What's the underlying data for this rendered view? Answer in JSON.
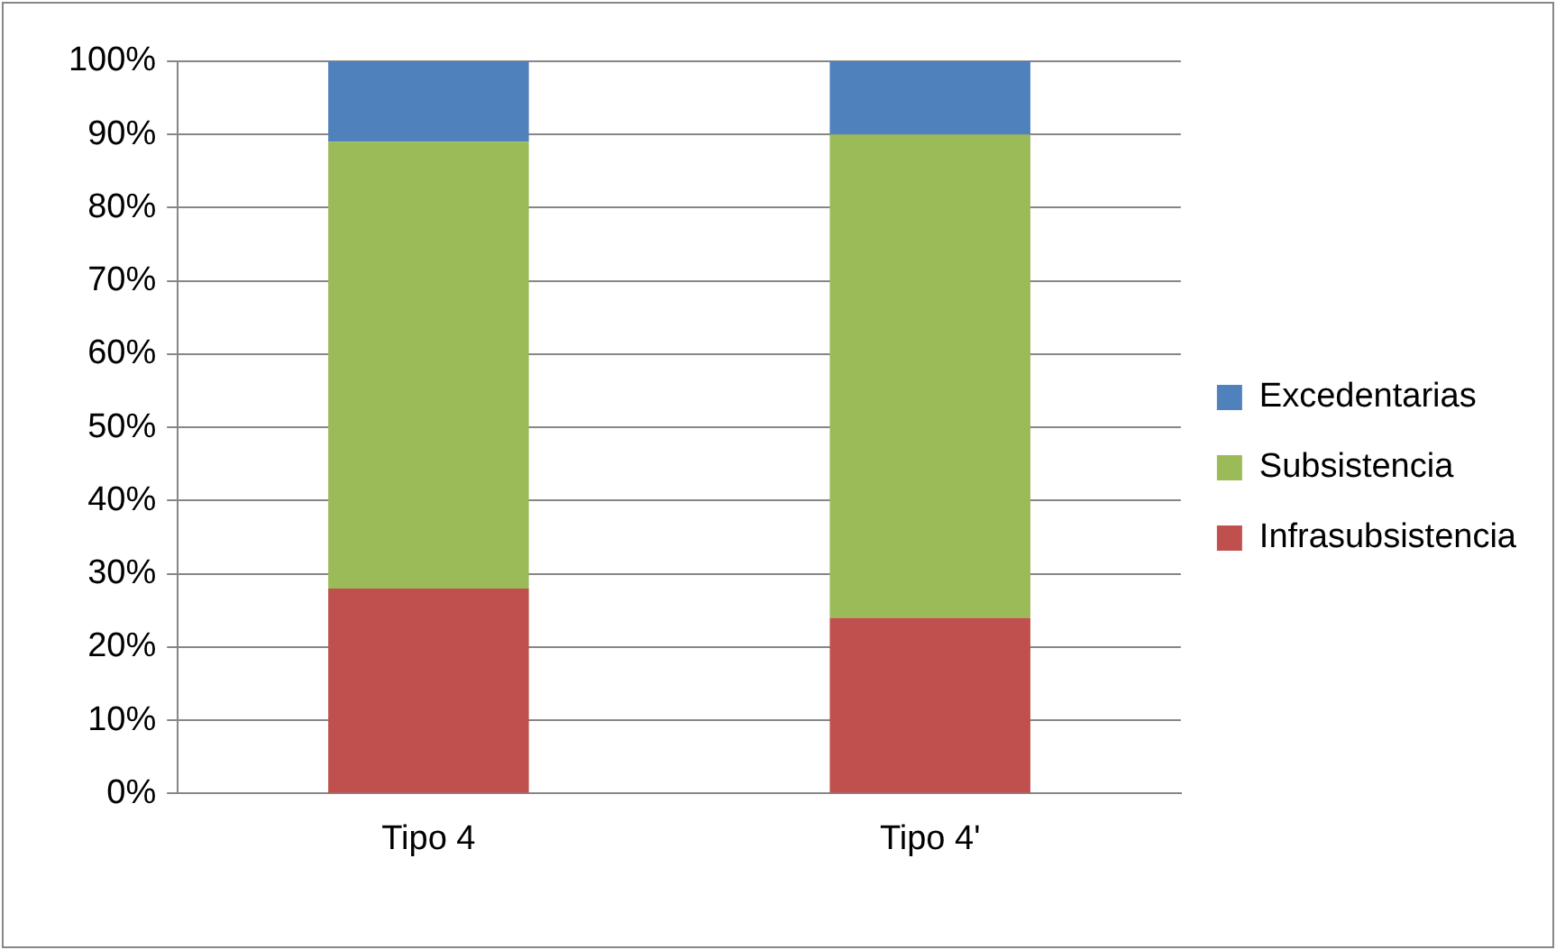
{
  "chart_data": {
    "type": "bar",
    "stacked": true,
    "categories": [
      "Tipo 4",
      "Tipo 4'"
    ],
    "series": [
      {
        "name": "Infrasubsistencia",
        "color": "#c0504d",
        "values": [
          28,
          24
        ]
      },
      {
        "name": "Subsistencia",
        "color": "#9bbb59",
        "values": [
          61,
          66
        ]
      },
      {
        "name": "Excedentarias",
        "color": "#4f81bd",
        "values": [
          11,
          10
        ]
      }
    ],
    "ylim": [
      0,
      100
    ],
    "yticks": [
      {
        "value": 0,
        "label": "0%"
      },
      {
        "value": 10,
        "label": "10%"
      },
      {
        "value": 20,
        "label": "20%"
      },
      {
        "value": 30,
        "label": "30%"
      },
      {
        "value": 40,
        "label": "40%"
      },
      {
        "value": 50,
        "label": "50%"
      },
      {
        "value": 60,
        "label": "60%"
      },
      {
        "value": 70,
        "label": "70%"
      },
      {
        "value": 80,
        "label": "80%"
      },
      {
        "value": 90,
        "label": "90%"
      },
      {
        "value": 100,
        "label": "100%"
      }
    ],
    "grid": "y",
    "legend": "right"
  }
}
